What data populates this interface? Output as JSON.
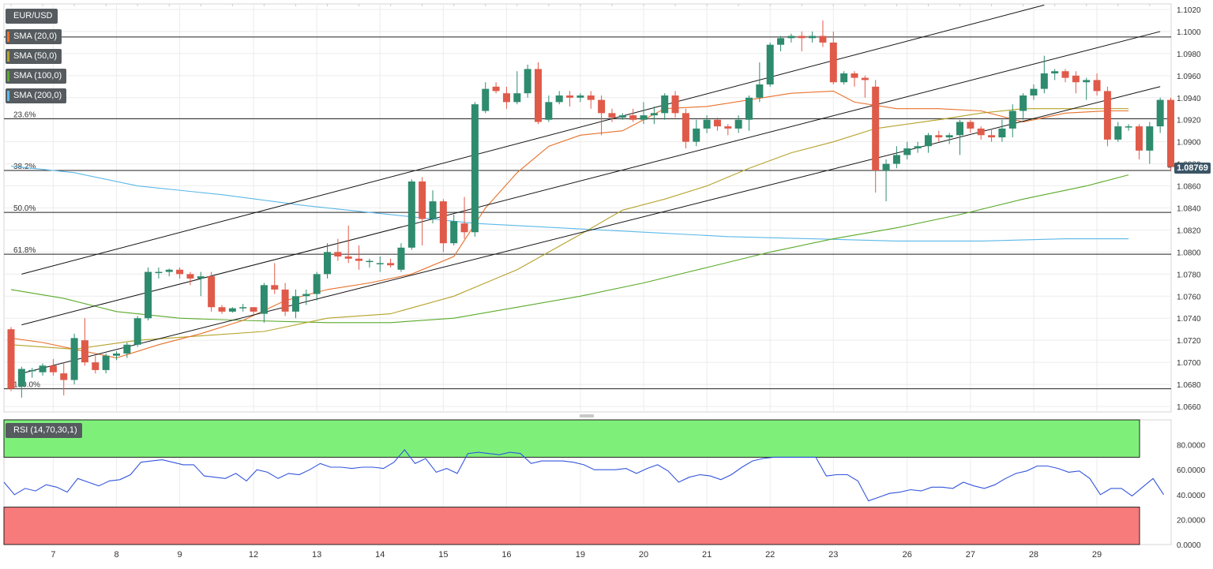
{
  "chart_data": [
    {
      "type": "candlestick",
      "title": "EUR/USD",
      "y_ticks": [
        "1.1020",
        "1.1000",
        "1.0980",
        "1.0960",
        "1.0940",
        "1.0920",
        "1.0900",
        "1.0880",
        "1.0860",
        "1.0840",
        "1.0820",
        "1.0800",
        "1.0780",
        "1.0760",
        "1.0740",
        "1.0720",
        "1.0700",
        "1.0680",
        "1.0660"
      ],
      "ylim": [
        1.0655,
        1.1025
      ],
      "x_ticks": [
        {
          "label": "7",
          "index": 4
        },
        {
          "label": "8",
          "index": 10
        },
        {
          "label": "9",
          "index": 16
        },
        {
          "label": "12",
          "index": 23
        },
        {
          "label": "13",
          "index": 29
        },
        {
          "label": "14",
          "index": 35
        },
        {
          "label": "15",
          "index": 41
        },
        {
          "label": "16",
          "index": 47
        },
        {
          "label": "19",
          "index": 54
        },
        {
          "label": "20",
          "index": 60
        },
        {
          "label": "21",
          "index": 66
        },
        {
          "label": "22",
          "index": 72
        },
        {
          "label": "23",
          "index": 78
        },
        {
          "label": "26",
          "index": 85
        },
        {
          "label": "27",
          "index": 91
        },
        {
          "label": "28",
          "index": 97
        },
        {
          "label": "29",
          "index": 103
        }
      ],
      "current_price": "1.08769",
      "legend": [
        {
          "label": "SMA (20,0)",
          "color": "#e8702a"
        },
        {
          "label": "SMA (50,0)",
          "color": "#b5a22a"
        },
        {
          "label": "SMA (100,0)",
          "color": "#5aaa2a"
        },
        {
          "label": "SMA (200,0)",
          "color": "#5bb8e8"
        }
      ],
      "fibonacci": [
        {
          "label": "0.0%",
          "price": 1.0995
        },
        {
          "label": "23.6%",
          "price": 1.0921
        },
        {
          "label": "38.2%",
          "price": 1.0874
        },
        {
          "label": "50.0%",
          "price": 1.0836
        },
        {
          "label": "61.8%",
          "price": 1.0798
        },
        {
          "label": "100.0%",
          "price": 1.0676
        }
      ],
      "candles": [
        [
          1.073,
          1.0676,
          1.0732,
          1.0674
        ],
        [
          1.0678,
          1.0694,
          1.0696,
          1.0668
        ],
        [
          1.0692,
          1.0693,
          1.0695,
          1.0686
        ],
        [
          1.0691,
          1.0697,
          1.0699,
          1.0688
        ],
        [
          1.0697,
          1.0691,
          1.0703,
          1.0688
        ],
        [
          1.069,
          1.0684,
          1.07,
          1.067
        ],
        [
          1.0684,
          1.0722,
          1.0726,
          1.068
        ],
        [
          1.072,
          1.07,
          1.074,
          1.0697
        ],
        [
          1.07,
          1.0693,
          1.0706,
          1.069
        ],
        [
          1.0693,
          1.0706,
          1.0708,
          1.069
        ],
        [
          1.0706,
          1.0708,
          1.071,
          1.0702
        ],
        [
          1.0708,
          1.0716,
          1.0718,
          1.0704
        ],
        [
          1.0716,
          1.074,
          1.0742,
          1.0714
        ],
        [
          1.074,
          1.0782,
          1.0786,
          1.0738
        ],
        [
          1.0782,
          1.0782,
          1.0786,
          1.0776
        ],
        [
          1.0782,
          1.0784,
          1.0785,
          1.0778
        ],
        [
          1.0784,
          1.078,
          1.0786,
          1.0776
        ],
        [
          1.078,
          1.0776,
          1.0782,
          1.077
        ],
        [
          1.0776,
          1.0778,
          1.0782,
          1.076
        ],
        [
          1.0778,
          1.075,
          1.0782,
          1.0746
        ],
        [
          1.075,
          1.0746,
          1.0752,
          1.0744
        ],
        [
          1.0746,
          1.0749,
          1.075,
          1.0745
        ],
        [
          1.0749,
          1.075,
          1.0753,
          1.0746
        ],
        [
          1.075,
          1.0746,
          1.075,
          1.0743
        ],
        [
          1.0744,
          1.077,
          1.0772,
          1.0736
        ],
        [
          1.077,
          1.0766,
          1.079,
          1.0762
        ],
        [
          1.0766,
          1.0746,
          1.0772,
          1.0742
        ],
        [
          1.0746,
          1.076,
          1.0766,
          1.074
        ],
        [
          1.076,
          1.0762,
          1.0766,
          1.0752
        ],
        [
          1.0762,
          1.078,
          1.0782,
          1.0756
        ],
        [
          1.078,
          1.08,
          1.0808,
          1.0776
        ],
        [
          1.08,
          1.0796,
          1.0812,
          1.0792
        ],
        [
          1.0796,
          1.0794,
          1.0824,
          1.079
        ],
        [
          1.0794,
          1.0792,
          1.0806,
          1.0784
        ],
        [
          1.0792,
          1.0792,
          1.0794,
          1.0786
        ],
        [
          1.079,
          1.079,
          1.0796,
          1.0782
        ],
        [
          1.079,
          1.0788,
          1.0794,
          1.0786
        ],
        [
          1.0784,
          1.0804,
          1.0808,
          1.0782
        ],
        [
          1.0804,
          1.0864,
          1.0866,
          1.0802
        ],
        [
          1.0864,
          1.083,
          1.0868,
          1.0806
        ],
        [
          1.083,
          1.0846,
          1.0856,
          1.0826
        ],
        [
          1.0846,
          1.0808,
          1.0848,
          1.08
        ],
        [
          1.0808,
          1.0828,
          1.0834,
          1.0806
        ],
        [
          1.0826,
          1.0818,
          1.085,
          1.0812
        ],
        [
          1.0818,
          1.0934,
          1.0936,
          1.0814
        ],
        [
          1.0928,
          1.0948,
          1.0954,
          1.0926
        ],
        [
          1.095,
          1.0946,
          1.0954,
          1.0944
        ],
        [
          1.0944,
          1.0936,
          1.095,
          1.093
        ],
        [
          1.0936,
          1.0944,
          1.0964,
          1.0934
        ],
        [
          1.0944,
          1.0966,
          1.097,
          1.094
        ],
        [
          1.0966,
          1.0918,
          1.0972,
          1.0916
        ],
        [
          1.092,
          1.0936,
          1.0942,
          1.0918
        ],
        [
          1.0936,
          1.0942,
          1.0946,
          1.0934
        ],
        [
          1.0942,
          1.094,
          1.0946,
          1.0932
        ],
        [
          1.094,
          1.0942,
          1.0944,
          1.0936
        ],
        [
          1.0942,
          1.0938,
          1.0946,
          1.093
        ],
        [
          1.0938,
          1.0926,
          1.0942,
          1.0906
        ],
        [
          1.0926,
          1.0922,
          1.093,
          1.0918
        ],
        [
          1.0922,
          1.0924,
          1.0926,
          1.092
        ],
        [
          1.0924,
          1.092,
          1.093,
          1.0918
        ],
        [
          1.092,
          1.0924,
          1.0936,
          1.0916
        ],
        [
          1.0924,
          1.0926,
          1.0932,
          1.0916
        ],
        [
          1.0926,
          1.0942,
          1.0944,
          1.092
        ],
        [
          1.0942,
          1.0926,
          1.0946,
          1.0922
        ],
        [
          1.0926,
          1.09,
          1.093,
          1.0894
        ],
        [
          1.09,
          1.0912,
          1.092,
          1.0896
        ],
        [
          1.0912,
          1.092,
          1.0924,
          1.0908
        ],
        [
          1.092,
          1.0914,
          1.0922,
          1.091
        ],
        [
          1.0914,
          1.0912,
          1.0916,
          1.0906
        ],
        [
          1.0912,
          1.092,
          1.0924,
          1.0908
        ],
        [
          1.092,
          1.094,
          1.0942,
          1.091
        ],
        [
          1.094,
          1.0952,
          1.0972,
          1.0936
        ],
        [
          1.0952,
          1.0988,
          1.099,
          1.095
        ],
        [
          1.0988,
          1.0994,
          1.0996,
          1.0982
        ],
        [
          1.0994,
          1.0996,
          1.0998,
          1.099
        ],
        [
          1.0996,
          1.0994,
          1.1,
          1.0982
        ],
        [
          1.0994,
          1.0996,
          1.1,
          1.099
        ],
        [
          1.0996,
          1.099,
          1.101,
          1.0986
        ],
        [
          1.099,
          1.0954,
          1.1,
          1.0952
        ],
        [
          1.0954,
          1.0962,
          1.0964,
          1.0952
        ],
        [
          1.0962,
          1.0958,
          1.0964,
          1.095
        ],
        [
          1.0958,
          1.0956,
          1.096,
          1.094
        ],
        [
          1.095,
          1.0874,
          1.0956,
          1.0854
        ],
        [
          1.0874,
          1.088,
          1.0884,
          1.0846
        ],
        [
          1.088,
          1.0888,
          1.0896,
          1.0876
        ],
        [
          1.0888,
          1.0894,
          1.09,
          1.0884
        ],
        [
          1.0894,
          1.0896,
          1.09,
          1.089
        ],
        [
          1.0896,
          1.0906,
          1.0908,
          1.089
        ],
        [
          1.0906,
          1.0904,
          1.091,
          1.09
        ],
        [
          1.0904,
          1.0906,
          1.0908,
          1.0898
        ],
        [
          1.0906,
          1.0918,
          1.092,
          1.0888
        ],
        [
          1.0918,
          1.0912,
          1.092,
          1.0908
        ],
        [
          1.0912,
          1.0906,
          1.0914,
          1.0902
        ],
        [
          1.0906,
          1.0904,
          1.0912,
          1.09
        ],
        [
          1.0904,
          1.0912,
          1.092,
          1.09
        ],
        [
          1.0912,
          1.0928,
          1.0934,
          1.0904
        ],
        [
          1.0928,
          1.0942,
          1.0944,
          1.092
        ],
        [
          1.0942,
          1.0948,
          1.0952,
          1.0938
        ],
        [
          1.0948,
          1.0962,
          1.0978,
          1.0944
        ],
        [
          1.0962,
          1.0964,
          1.0966,
          1.0956
        ],
        [
          1.0964,
          1.0958,
          1.0966,
          1.0954
        ],
        [
          1.096,
          1.0954,
          1.0964,
          1.0944
        ],
        [
          1.0954,
          1.0956,
          1.0958,
          1.0938
        ],
        [
          1.0956,
          1.0946,
          1.0962,
          1.0942
        ],
        [
          1.0946,
          1.0902,
          1.095,
          1.0896
        ],
        [
          1.0902,
          1.0914,
          1.0918,
          1.09
        ],
        [
          1.0914,
          1.0914,
          1.0916,
          1.091
        ],
        [
          1.0914,
          1.0892,
          1.0916,
          1.0884
        ],
        [
          1.0892,
          1.0914,
          1.0918,
          1.088
        ],
        [
          1.0914,
          1.0938,
          1.094,
          1.0908
        ],
        [
          1.0938,
          1.0877,
          1.094,
          1.0874
        ]
      ],
      "sma20": [
        [
          0,
          1.0722
        ],
        [
          3,
          1.0718
        ],
        [
          6,
          1.0712
        ],
        [
          10,
          1.0704
        ],
        [
          14,
          1.0716
        ],
        [
          18,
          1.0726
        ],
        [
          22,
          1.0738
        ],
        [
          26,
          1.0756
        ],
        [
          30,
          1.0766
        ],
        [
          34,
          1.0772
        ],
        [
          38,
          1.078
        ],
        [
          42,
          1.0796
        ],
        [
          45,
          1.084
        ],
        [
          48,
          1.0872
        ],
        [
          51,
          1.0896
        ],
        [
          54,
          1.0906
        ],
        [
          58,
          1.091
        ],
        [
          62,
          1.093
        ],
        [
          66,
          1.0932
        ],
        [
          70,
          1.0938
        ],
        [
          74,
          1.0944
        ],
        [
          78,
          1.0946
        ],
        [
          80,
          1.0936
        ],
        [
          84,
          1.093
        ],
        [
          88,
          1.093
        ],
        [
          92,
          1.0928
        ],
        [
          96,
          1.0918
        ],
        [
          100,
          1.0926
        ],
        [
          104,
          1.0928
        ],
        [
          106,
          1.0928
        ]
      ],
      "sma50": [
        [
          0,
          1.0716
        ],
        [
          6,
          1.0712
        ],
        [
          12,
          1.072
        ],
        [
          18,
          1.0724
        ],
        [
          24,
          1.0728
        ],
        [
          30,
          1.074
        ],
        [
          36,
          1.0744
        ],
        [
          42,
          1.076
        ],
        [
          48,
          1.0784
        ],
        [
          54,
          1.0816
        ],
        [
          58,
          1.0838
        ],
        [
          62,
          1.0848
        ],
        [
          66,
          1.086
        ],
        [
          70,
          1.0876
        ],
        [
          74,
          1.089
        ],
        [
          78,
          1.09
        ],
        [
          82,
          1.0912
        ],
        [
          88,
          1.092
        ],
        [
          92,
          1.0926
        ],
        [
          96,
          1.093
        ],
        [
          100,
          1.093
        ],
        [
          104,
          1.093
        ],
        [
          106,
          1.093
        ]
      ],
      "sma100": [
        [
          0,
          1.0766
        ],
        [
          5,
          1.0758
        ],
        [
          10,
          1.0746
        ],
        [
          16,
          1.074
        ],
        [
          22,
          1.0738
        ],
        [
          30,
          1.0736
        ],
        [
          36,
          1.0736
        ],
        [
          42,
          1.074
        ],
        [
          48,
          1.075
        ],
        [
          54,
          1.076
        ],
        [
          60,
          1.0772
        ],
        [
          66,
          1.0786
        ],
        [
          72,
          1.08
        ],
        [
          78,
          1.0812
        ],
        [
          84,
          1.0822
        ],
        [
          90,
          1.0834
        ],
        [
          96,
          1.0848
        ],
        [
          102,
          1.086
        ],
        [
          106,
          1.087
        ]
      ],
      "sma200": [
        [
          0,
          1.0878
        ],
        [
          6,
          1.0872
        ],
        [
          12,
          1.086
        ],
        [
          20,
          1.0852
        ],
        [
          28,
          1.0842
        ],
        [
          36,
          1.0834
        ],
        [
          44,
          1.0826
        ],
        [
          52,
          1.0822
        ],
        [
          60,
          1.0818
        ],
        [
          68,
          1.0814
        ],
        [
          76,
          1.0812
        ],
        [
          84,
          1.081
        ],
        [
          92,
          1.081
        ],
        [
          100,
          1.0812
        ],
        [
          106,
          1.0812
        ]
      ],
      "channel_lines": [
        {
          "p1": [
            1,
            1.078
          ],
          "p2": [
            98,
            1.1024
          ]
        },
        {
          "p1": [
            1,
            1.0734
          ],
          "p2": [
            109,
            1.1
          ]
        },
        {
          "p1": [
            1,
            1.069
          ],
          "p2": [
            109,
            1.095
          ]
        }
      ]
    },
    {
      "type": "line",
      "title": "RSI (14,70,30,1)",
      "y_ticks": [
        "80.0000",
        "60.0000",
        "40.0000",
        "20.0000",
        "0.0000"
      ],
      "ylim": [
        0,
        100
      ],
      "overbought": 70,
      "oversold": 30,
      "values": [
        50,
        40,
        45,
        43,
        48,
        46,
        42,
        53,
        50,
        47,
        51,
        52,
        56,
        66,
        67,
        68,
        66,
        64,
        64,
        55,
        54,
        53,
        57,
        51,
        60,
        58,
        53,
        57,
        56,
        60,
        65,
        62,
        62,
        61,
        62,
        62,
        61,
        66,
        76,
        65,
        69,
        58,
        61,
        57,
        73,
        74,
        73,
        72,
        74,
        73,
        65,
        67,
        67,
        67,
        66,
        64,
        60,
        60,
        60,
        61,
        57,
        61,
        64,
        59,
        50,
        54,
        56,
        55,
        52,
        56,
        62,
        67,
        69,
        70,
        70,
        70,
        70,
        70,
        55,
        56,
        56,
        51,
        35,
        38,
        41,
        42,
        44,
        43,
        46,
        46,
        45,
        50,
        47,
        45,
        48,
        53,
        57,
        59,
        63,
        63,
        61,
        58,
        59,
        53,
        40,
        45,
        45,
        39,
        46,
        53,
        40
      ]
    }
  ]
}
